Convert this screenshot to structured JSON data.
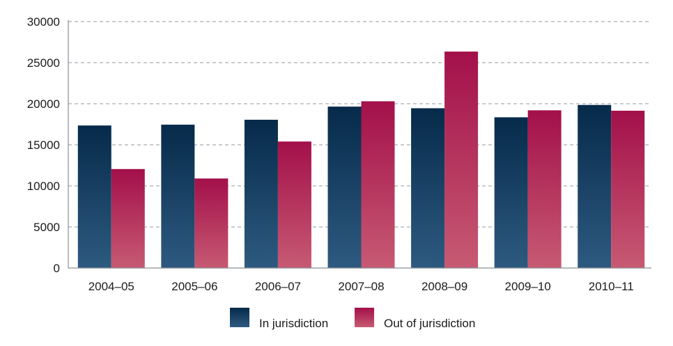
{
  "chart_data": {
    "type": "bar",
    "title": "",
    "xlabel": "",
    "ylabel": "",
    "categories": [
      "2004–05",
      "2005–06",
      "2006–07",
      "2007–08",
      "2008–09",
      "2009–10",
      "2010–11"
    ],
    "series": [
      {
        "name": "In jurisdiction",
        "values": [
          17350,
          17450,
          18050,
          19650,
          19450,
          18350,
          19850
        ],
        "color": "#0f3556"
      },
      {
        "name": "Out of jurisdiction",
        "values": [
          12050,
          10900,
          15400,
          20300,
          26350,
          19200,
          19150
        ],
        "color": "#a51548"
      }
    ],
    "ylim": [
      0,
      30000
    ],
    "yticks": [
      0,
      5000,
      10000,
      15000,
      20000,
      25000,
      30000
    ],
    "grid": true,
    "legend_position": "bottom"
  }
}
